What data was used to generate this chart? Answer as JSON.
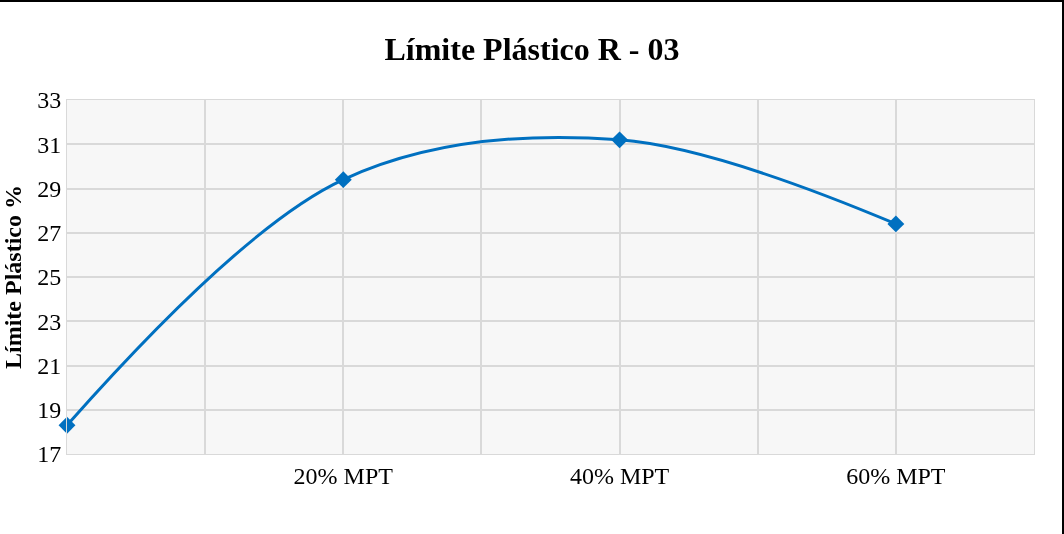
{
  "chart_data": {
    "type": "line",
    "title": "Límite Plástico R - 03",
    "ylabel": "Límite Plástico %",
    "categories": [
      null,
      "20% MPT",
      "40% MPT",
      "60% MPT"
    ],
    "series": [
      {
        "color": "#0070c0",
        "values": [
          18.3,
          29.4,
          31.2,
          27.4
        ]
      }
    ],
    "ylim": [
      17,
      33
    ],
    "yticks": [
      17,
      19,
      21,
      23,
      25,
      27,
      29,
      31,
      33
    ],
    "grid": true,
    "marker": "diamond",
    "line_style": "solid"
  }
}
